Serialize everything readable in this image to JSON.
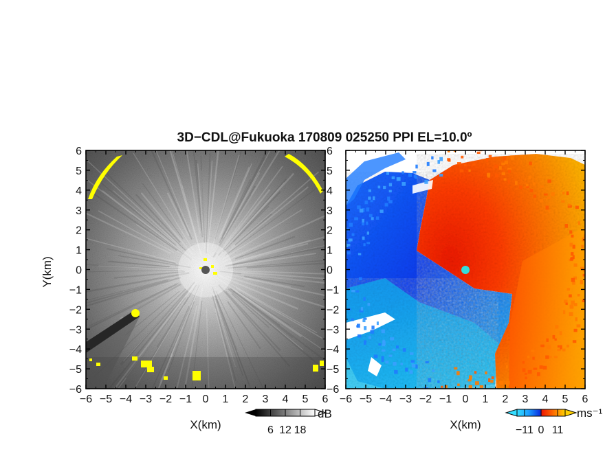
{
  "title": "3D−CDL@Fukuoka 170809 025250 PPI EL=10.0º",
  "colors": {
    "frame": "#000000",
    "highlight": "#ffff00",
    "radar_dot_left": "#555555",
    "radar_dot_right": "#33dddd"
  },
  "chart_data": [
    {
      "type": "heatmap",
      "name": "reflectivity-ppi",
      "xlabel": "X(km)",
      "ylabel": "Y(km)",
      "xlim": [
        -6,
        6
      ],
      "ylim": [
        -6,
        6
      ],
      "x_ticks": [
        "−6",
        "−5",
        "−4",
        "−3",
        "−2",
        "−1",
        "0",
        "1",
        "2",
        "3",
        "4",
        "5",
        "6"
      ],
      "y_ticks": [
        "6",
        "5",
        "4",
        "3",
        "2",
        "1",
        "0",
        "−1",
        "−2",
        "−3",
        "−4",
        "−5",
        "−6"
      ],
      "colorbar": {
        "unit": "dB",
        "ticks": [
          "6",
          "12",
          "18"
        ],
        "range": [
          0,
          24
        ],
        "colormap": "grayscale"
      },
      "grid": false
    },
    {
      "type": "heatmap",
      "name": "doppler-velocity-ppi",
      "xlabel": "X(km)",
      "ylabel": "",
      "xlim": [
        -6,
        6
      ],
      "ylim": [
        -6,
        6
      ],
      "x_ticks": [
        "−6",
        "−5",
        "−4",
        "−3",
        "−2",
        "−1",
        "0",
        "1",
        "2",
        "3",
        "4",
        "5",
        "6"
      ],
      "y_ticks": [
        "6",
        "5",
        "4",
        "3",
        "2",
        "1",
        "0",
        "−1",
        "−2",
        "−3",
        "−4",
        "−5",
        "−6"
      ],
      "colorbar": {
        "unit": "ms⁻¹",
        "ticks": [
          "−11",
          "0",
          "11"
        ],
        "range": [
          -16,
          16
        ],
        "colormap": "blue-white-red"
      },
      "grid": false
    }
  ]
}
